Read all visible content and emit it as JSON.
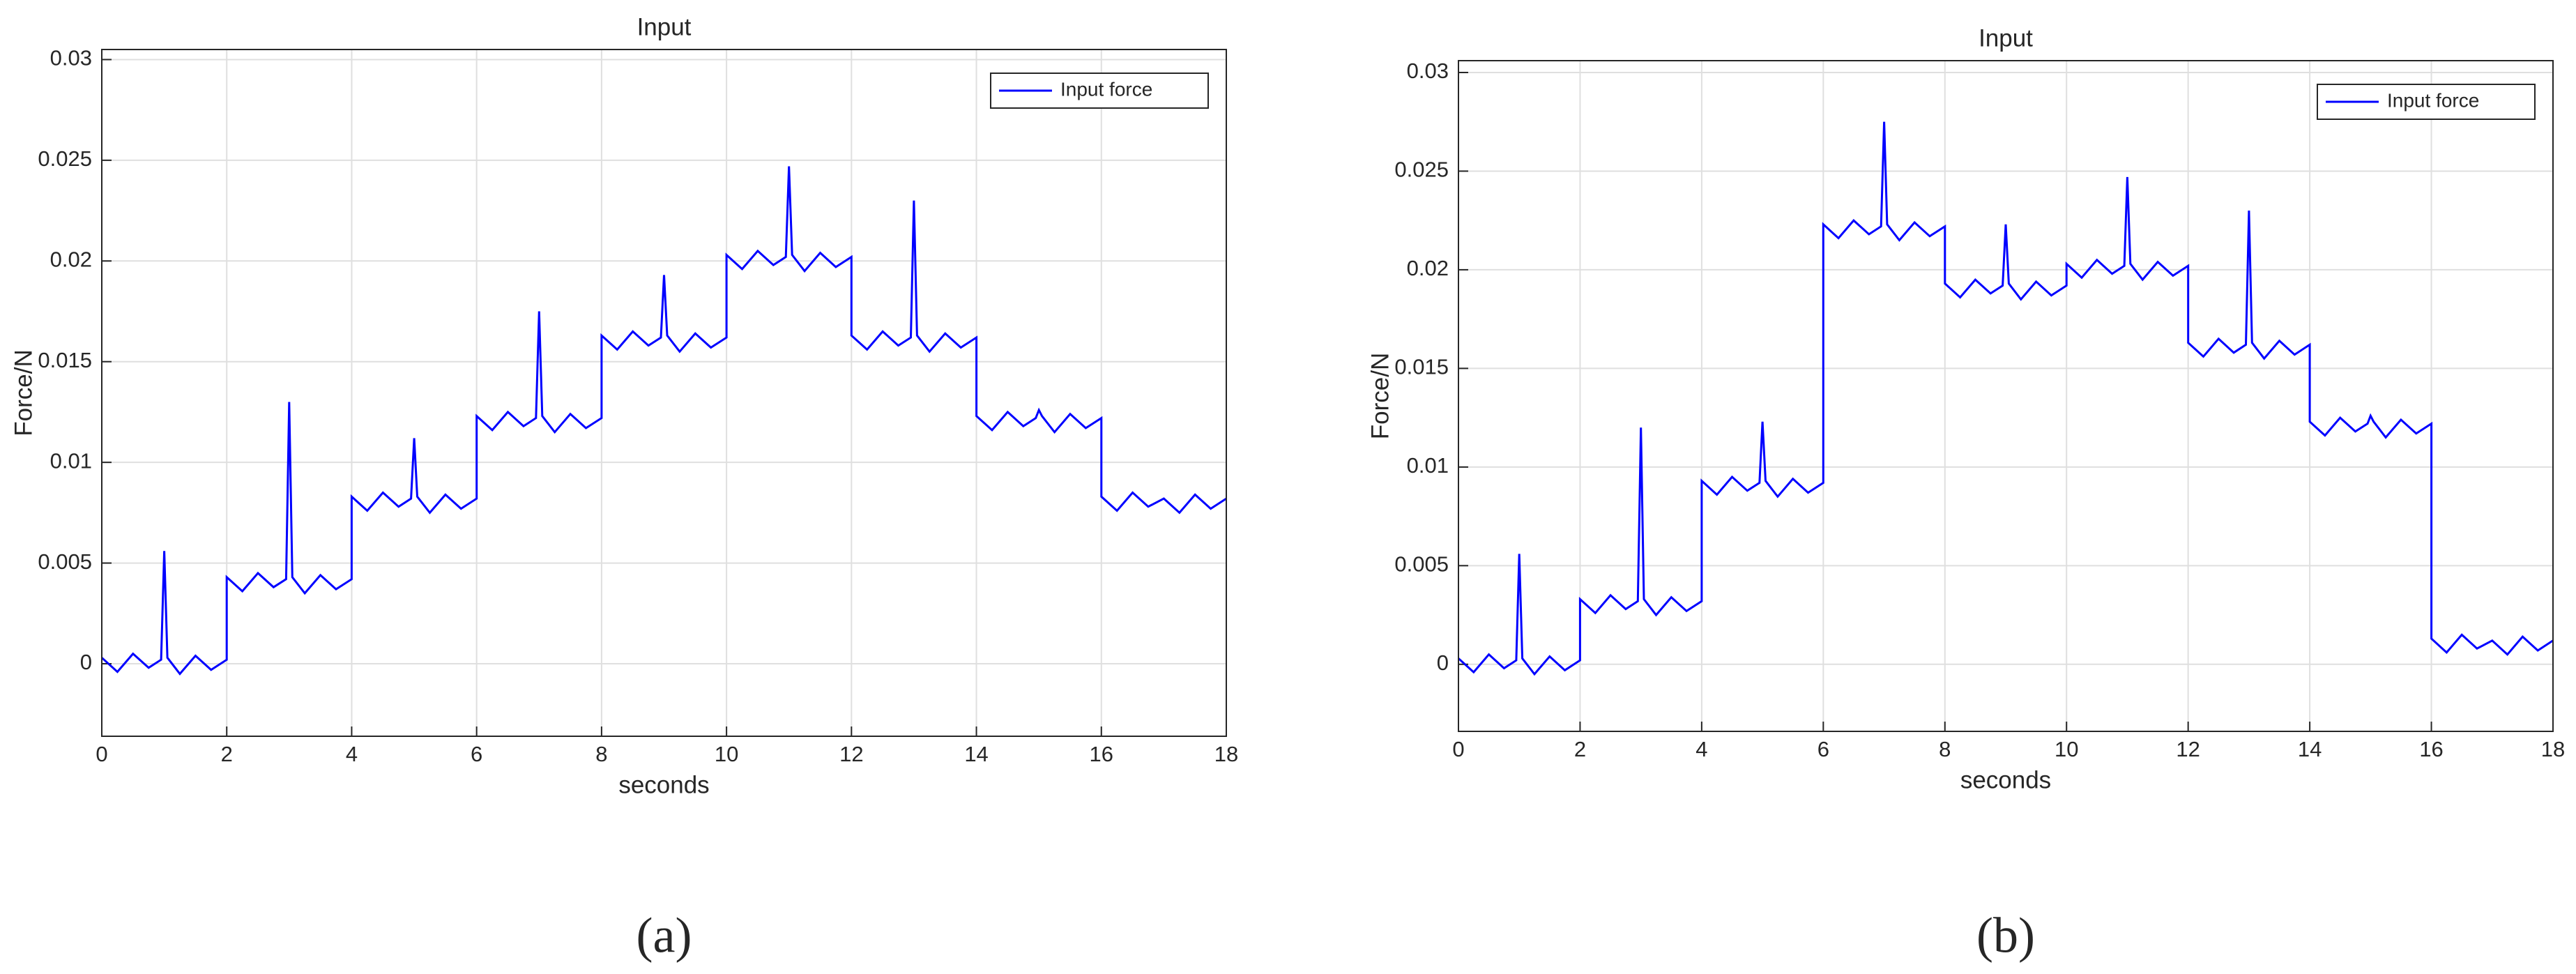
{
  "chart_data": [
    {
      "type": "line",
      "title": "Input",
      "xlabel": "seconds",
      "ylabel": "Force/N",
      "caption": "(a)",
      "x": [
        0,
        0.25,
        0.5,
        0.75,
        0.95,
        1,
        1.05,
        1.25,
        1.5,
        1.75,
        2,
        2,
        2.25,
        2.5,
        2.75,
        2.95,
        3,
        3.05,
        3.25,
        3.5,
        3.75,
        4,
        4,
        4.25,
        4.5,
        4.75,
        4.95,
        5,
        5.05,
        5.25,
        5.5,
        5.75,
        6,
        6,
        6.25,
        6.5,
        6.75,
        6.95,
        7,
        7.05,
        7.25,
        7.5,
        7.75,
        8,
        8,
        8.25,
        8.5,
        8.75,
        8.95,
        9,
        9.05,
        9.25,
        9.5,
        9.75,
        10,
        10,
        10.25,
        10.5,
        10.75,
        10.95,
        11,
        11.05,
        11.25,
        11.5,
        11.75,
        12,
        12,
        12.25,
        12.5,
        12.75,
        12.95,
        13,
        13.05,
        13.25,
        13.5,
        13.75,
        14,
        14,
        14.25,
        14.5,
        14.75,
        14.95,
        15,
        15.05,
        15.25,
        15.5,
        15.75,
        16,
        16,
        16.25,
        16.5,
        16.75,
        17,
        17.25,
        17.5,
        17.75,
        18
      ],
      "series": [
        {
          "name": "Input force",
          "color": "#0000ff",
          "values": [
            0.0003,
            -0.0004,
            0.0005,
            -0.0002,
            0.0002,
            0.0056,
            0.0003,
            -0.0005,
            0.0004,
            -0.0003,
            0.0002,
            0.0043,
            0.0036,
            0.0045,
            0.0038,
            0.0042,
            0.013,
            0.0043,
            0.0035,
            0.0044,
            0.0037,
            0.0042,
            0.0083,
            0.0076,
            0.0085,
            0.0078,
            0.0082,
            0.0112,
            0.0083,
            0.0075,
            0.0084,
            0.0077,
            0.0082,
            0.0123,
            0.0116,
            0.0125,
            0.0118,
            0.0122,
            0.0175,
            0.0123,
            0.0115,
            0.0124,
            0.0117,
            0.0122,
            0.0163,
            0.0156,
            0.0165,
            0.0158,
            0.0162,
            0.0193,
            0.0163,
            0.0155,
            0.0164,
            0.0157,
            0.0162,
            0.0203,
            0.0196,
            0.0205,
            0.0198,
            0.0202,
            0.0247,
            0.0203,
            0.0195,
            0.0204,
            0.0197,
            0.0202,
            0.0163,
            0.0156,
            0.0165,
            0.0158,
            0.0162,
            0.023,
            0.0163,
            0.0155,
            0.0164,
            0.0157,
            0.0162,
            0.0123,
            0.0116,
            0.0125,
            0.0118,
            0.0122,
            0.0126,
            0.0123,
            0.0115,
            0.0124,
            0.0117,
            0.0122,
            0.0083,
            0.0076,
            0.0085,
            0.0078,
            0.0082,
            0.0075,
            0.0084,
            0.0077,
            0.0082
          ]
        }
      ],
      "xlim": [
        0,
        18
      ],
      "ylim": [
        -0.0036,
        0.0305
      ],
      "xticks": [
        0,
        2,
        4,
        6,
        8,
        10,
        12,
        14,
        16,
        18
      ],
      "yticks": [
        0,
        0.005,
        0.01,
        0.015,
        0.02,
        0.025,
        0.03
      ],
      "grid": true,
      "legend": "upper right"
    },
    {
      "type": "line",
      "title": "Input",
      "xlabel": "seconds",
      "ylabel": "Force/N",
      "caption": "(b)",
      "x": [
        0,
        0.25,
        0.5,
        0.75,
        0.95,
        1,
        1.05,
        1.25,
        1.5,
        1.75,
        2,
        2,
        2.25,
        2.5,
        2.75,
        2.95,
        3,
        3.05,
        3.25,
        3.5,
        3.75,
        4,
        4,
        4.25,
        4.5,
        4.75,
        4.95,
        5,
        5.05,
        5.25,
        5.5,
        5.75,
        6,
        6,
        6.25,
        6.5,
        6.75,
        6.95,
        7,
        7.05,
        7.25,
        7.5,
        7.75,
        8,
        8,
        8.25,
        8.5,
        8.75,
        8.95,
        9,
        9.05,
        9.25,
        9.5,
        9.75,
        10,
        10,
        10.25,
        10.5,
        10.75,
        10.95,
        11,
        11.05,
        11.25,
        11.5,
        11.75,
        12,
        12,
        12.25,
        12.5,
        12.75,
        12.95,
        13,
        13.05,
        13.25,
        13.5,
        13.75,
        14,
        14,
        14.25,
        14.5,
        14.75,
        14.95,
        15,
        15.05,
        15.25,
        15.5,
        15.75,
        16,
        16,
        16.25,
        16.5,
        16.75,
        17,
        17.25,
        17.5,
        17.75,
        18
      ],
      "series": [
        {
          "name": "Input force",
          "color": "#0000ff",
          "values": [
            0.0003,
            -0.0004,
            0.0005,
            -0.0002,
            0.0002,
            0.0056,
            0.0003,
            -0.0005,
            0.0004,
            -0.0003,
            0.0002,
            0.0033,
            0.0026,
            0.0035,
            0.0028,
            0.0032,
            0.012,
            0.0033,
            0.0025,
            0.0034,
            0.0027,
            0.0032,
            0.0093,
            0.0086,
            0.0095,
            0.0088,
            0.0092,
            0.0123,
            0.0093,
            0.0085,
            0.0094,
            0.0087,
            0.0092,
            0.0223,
            0.0216,
            0.0225,
            0.0218,
            0.0222,
            0.0275,
            0.0223,
            0.0215,
            0.0224,
            0.0217,
            0.0222,
            0.0193,
            0.0186,
            0.0195,
            0.0188,
            0.0192,
            0.0223,
            0.0193,
            0.0185,
            0.0194,
            0.0187,
            0.0192,
            0.0203,
            0.0196,
            0.0205,
            0.0198,
            0.0202,
            0.0247,
            0.0203,
            0.0195,
            0.0204,
            0.0197,
            0.0202,
            0.0163,
            0.0156,
            0.0165,
            0.0158,
            0.0162,
            0.023,
            0.0163,
            0.0155,
            0.0164,
            0.0157,
            0.0162,
            0.0123,
            0.0116,
            0.0125,
            0.0118,
            0.0122,
            0.0126,
            0.0123,
            0.0115,
            0.0124,
            0.0117,
            0.0122,
            0.0013,
            0.0006,
            0.0015,
            0.0008,
            0.0012,
            0.0005,
            0.0014,
            0.0007,
            0.0012
          ]
        }
      ],
      "xlim": [
        0,
        18
      ],
      "ylim": [
        -0.0034,
        0.0306
      ],
      "xticks": [
        0,
        2,
        4,
        6,
        8,
        10,
        12,
        14,
        16,
        18
      ],
      "yticks": [
        0,
        0.005,
        0.01,
        0.015,
        0.02,
        0.025,
        0.03
      ],
      "grid": true,
      "legend": "upper right"
    }
  ]
}
